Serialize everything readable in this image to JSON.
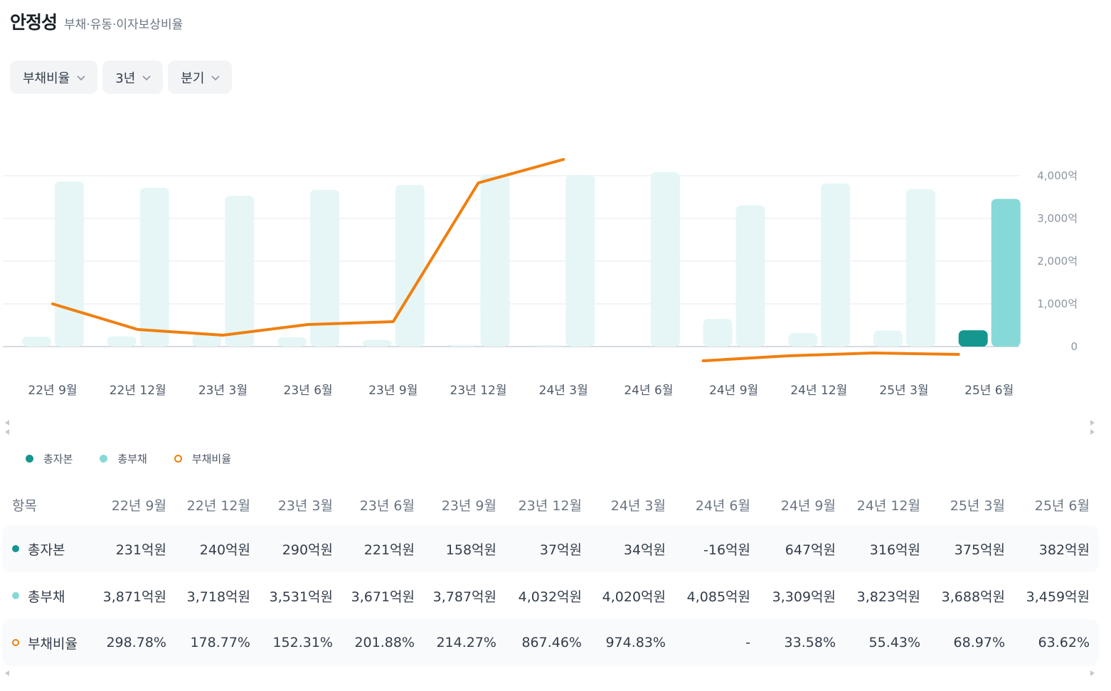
{
  "header": {
    "title": "안정성",
    "subtitle": "부채·유동·이자보상비율"
  },
  "filters": [
    {
      "label": "부채비율"
    },
    {
      "label": "3년"
    },
    {
      "label": "분기"
    }
  ],
  "colors": {
    "equity": "#15968f",
    "liabilities": "#86d9d7",
    "liabilities_faded": "#e6f6f6",
    "equity_faded": "#e6f6f6",
    "ratio": "#f07f0e",
    "grid": "#e5e8eb",
    "axis_text": "#8b95a1"
  },
  "legend": [
    {
      "label": "총자본",
      "style": "filled",
      "color": "#15968f"
    },
    {
      "label": "총부채",
      "style": "filled",
      "color": "#86d9d7"
    },
    {
      "label": "부채비율",
      "style": "ring",
      "color": "#f07f0e"
    }
  ],
  "chart_data": {
    "type": "bar",
    "categories": [
      "22년 9월",
      "22년 12월",
      "23년 3월",
      "23년 6월",
      "23년 9월",
      "23년 12월",
      "24년 3월",
      "24년 6월",
      "24년 9월",
      "24년 12월",
      "25년 3월",
      "25년 6월"
    ],
    "series": [
      {
        "name": "총자본",
        "type": "bar",
        "values": [
          231,
          240,
          290,
          221,
          158,
          37,
          34,
          -16,
          647,
          316,
          375,
          382
        ]
      },
      {
        "name": "총부채",
        "type": "bar",
        "values": [
          3871,
          3718,
          3531,
          3671,
          3787,
          4032,
          4020,
          4085,
          3309,
          3823,
          3688,
          3459
        ]
      },
      {
        "name": "부채비율",
        "type": "line",
        "values": [
          298.78,
          178.77,
          152.31,
          201.88,
          214.27,
          867.46,
          974.83,
          null,
          33.58,
          55.43,
          68.97,
          63.62
        ]
      }
    ],
    "y_ticks": [
      "4,000억",
      "3,000억",
      "2,000억",
      "1,000억",
      "0"
    ],
    "y_tick_values": [
      4000,
      3000,
      2000,
      1000,
      0
    ],
    "ylim": [
      0,
      4000
    ],
    "highlighted_index": 11,
    "grid": true
  },
  "table": {
    "header_label": "항목",
    "columns": [
      "22년 9월",
      "22년 12월",
      "23년 3월",
      "23년 6월",
      "23년 9월",
      "23년 12월",
      "24년 3월",
      "24년 6월",
      "24년 9월",
      "24년 12월",
      "25년 3월",
      "25년 6월"
    ],
    "rows": [
      {
        "label": "총자본",
        "values": [
          "231억원",
          "240억원",
          "290억원",
          "221억원",
          "158억원",
          "37억원",
          "34억원",
          "-16억원",
          "647억원",
          "316억원",
          "375억원",
          "382억원"
        ]
      },
      {
        "label": "총부채",
        "values": [
          "3,871억원",
          "3,718억원",
          "3,531억원",
          "3,671억원",
          "3,787억원",
          "4,032억원",
          "4,020억원",
          "4,085억원",
          "3,309억원",
          "3,823억원",
          "3,688억원",
          "3,459억원"
        ]
      },
      {
        "label": "부채비율",
        "values": [
          "298.78%",
          "178.77%",
          "152.31%",
          "201.88%",
          "214.27%",
          "867.46%",
          "974.83%",
          "-",
          "33.58%",
          "55.43%",
          "68.97%",
          "63.62%"
        ]
      }
    ]
  }
}
